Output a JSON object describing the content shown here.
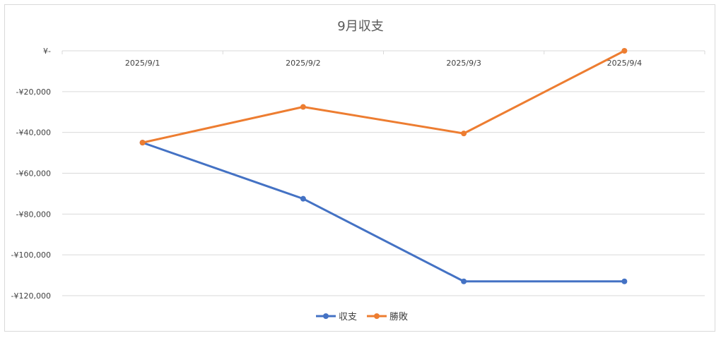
{
  "chart_data": {
    "type": "line",
    "title": "9月収支",
    "categories": [
      "2025/9/1",
      "2025/9/2",
      "2025/9/3",
      "2025/9/4"
    ],
    "series": [
      {
        "name": "収支",
        "color": "#4472c4",
        "values": [
          -45000,
          -72500,
          -113000,
          -113000
        ]
      },
      {
        "name": "勝敗",
        "color": "#ed7d31",
        "values": [
          -45000,
          -27500,
          -40500,
          0
        ]
      }
    ],
    "ylim": [
      -120000,
      0
    ],
    "ytick_labels": [
      "¥-",
      "-¥20,000",
      "-¥40,000",
      "-¥60,000",
      "-¥80,000",
      "-¥100,000",
      "-¥120,000"
    ],
    "ytick_values": [
      0,
      -20000,
      -40000,
      -60000,
      -80000,
      -100000,
      -120000
    ],
    "grid": true,
    "legend_position": "bottom",
    "xlabel": "",
    "ylabel": ""
  }
}
